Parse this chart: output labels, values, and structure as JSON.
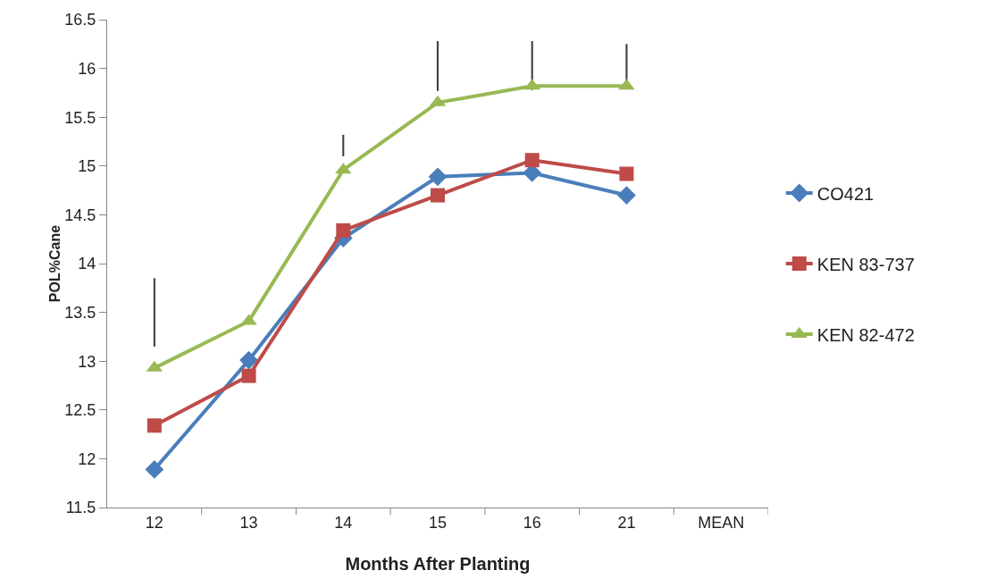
{
  "chart_data": {
    "type": "line",
    "xlabel": "Months After Planting",
    "ylabel": "POL%Cane",
    "categories": [
      "12",
      "13",
      "14",
      "15",
      "16",
      "21",
      "MEAN"
    ],
    "ylim": [
      11.5,
      16.5
    ],
    "yticks": [
      11.5,
      12,
      12.5,
      13,
      13.5,
      14,
      14.5,
      15,
      15.5,
      16,
      16.5
    ],
    "grid": false,
    "legend": "right",
    "line_style": "solid",
    "series": [
      {
        "name": "CO421",
        "color": "#4a7ebb",
        "marker": "diamond",
        "values": [
          11.89,
          13.01,
          14.26,
          14.89,
          14.93,
          14.7,
          null
        ]
      },
      {
        "name": "KEN 83-737",
        "color": "#be4b48",
        "marker": "square",
        "values": [
          12.34,
          12.85,
          14.34,
          14.7,
          15.06,
          14.92,
          null
        ]
      },
      {
        "name": "KEN 82-472",
        "color": "#98b954",
        "marker": "triangle",
        "values": [
          12.93,
          13.41,
          14.96,
          15.65,
          15.82,
          15.82,
          null
        ]
      },
      {
        "type": "bar",
        "color": "#404040",
        "base": [
          13.15,
          null,
          15.1,
          15.77,
          15.78,
          15.82,
          null
        ],
        "values": [
          0.7,
          null,
          0.22,
          0.51,
          0.5,
          0.43,
          null
        ]
      }
    ]
  }
}
